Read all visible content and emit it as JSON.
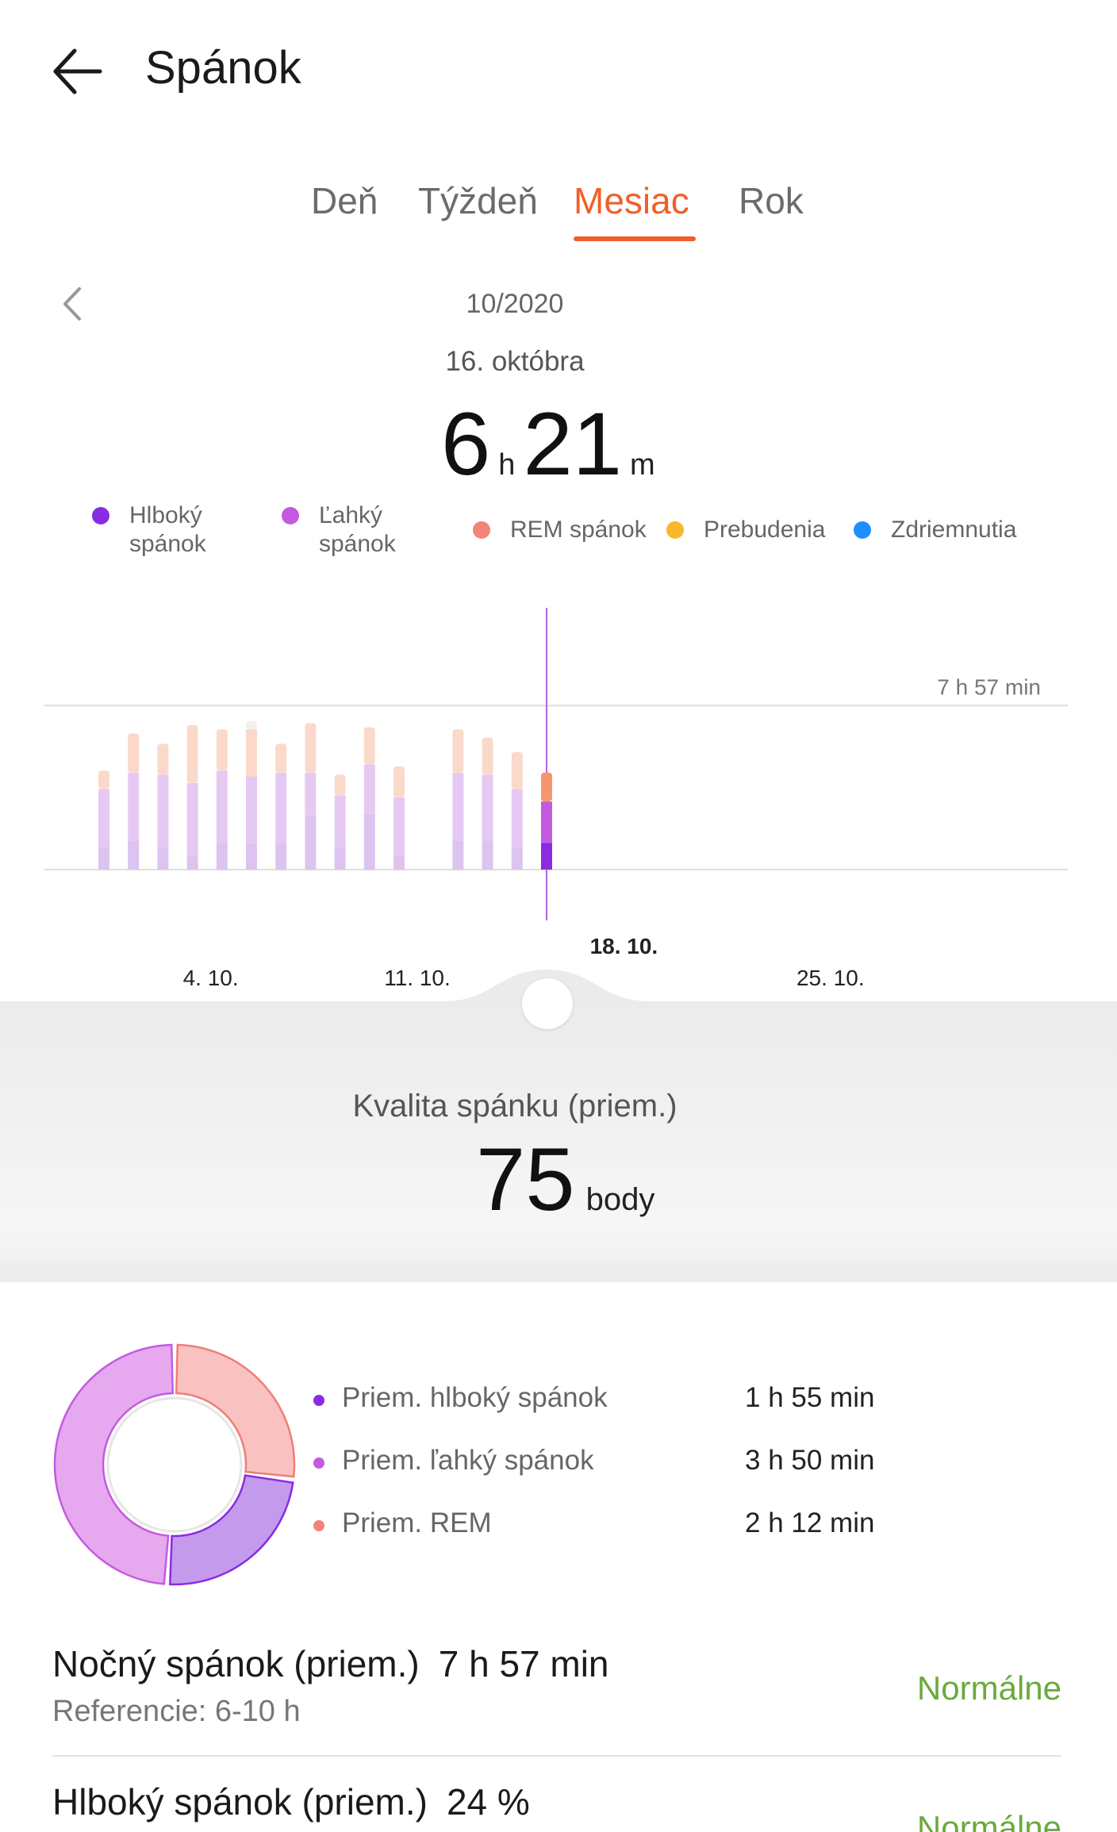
{
  "header": {
    "title": "Spánok",
    "back_icon": "arrow-left-icon"
  },
  "tabs": [
    {
      "label": "Deň",
      "active": false
    },
    {
      "label": "Týždeň",
      "active": false
    },
    {
      "label": "Mesiac",
      "active": true
    },
    {
      "label": "Rok",
      "active": false
    }
  ],
  "period": {
    "month": "10/2020",
    "selected_date": "16. októbra"
  },
  "summary": {
    "hours": "6",
    "hours_unit": "h",
    "minutes": "21",
    "minutes_unit": "m"
  },
  "legend": [
    {
      "label": "Hlboký spánok",
      "color": "#8a2be2"
    },
    {
      "label": "Ľahký spánok",
      "color": "#c45ae0"
    },
    {
      "label": "REM spánok",
      "color": "#f4847a"
    },
    {
      "label": "Prebudenia",
      "color": "#f7b82b"
    },
    {
      "label": "Zdriemnutia",
      "color": "#1e8fff"
    }
  ],
  "chart_data": {
    "type": "bar",
    "stacked": true,
    "x_labels": [
      "4. 10.",
      "11. 10.",
      "18. 10.",
      "25. 10."
    ],
    "highlighted_label": "18. 10.",
    "reference_line_label": "7 h 57 min",
    "reference_line_hours": 7.95,
    "y_max_hours": 10,
    "days": [
      1,
      2,
      3,
      4,
      5,
      6,
      7,
      8,
      9,
      10,
      11,
      12,
      13,
      14,
      15,
      16
    ],
    "series": [
      {
        "name": "Hlboký spánok",
        "color": "#8a2be2",
        "values": [
          1.1,
          1.4,
          1.1,
          0.7,
          1.3,
          1.3,
          1.3,
          2.6,
          1.1,
          2.7,
          0.7,
          null,
          1.4,
          1.4,
          1.1,
          1.3
        ]
      },
      {
        "name": "Ľahký spánok",
        "color": "#c45ae0",
        "values": [
          2.8,
          3.3,
          3.5,
          3.5,
          3.5,
          3.2,
          3.4,
          2.1,
          2.5,
          2.4,
          2.8,
          null,
          3.3,
          3.2,
          2.8,
          2.0
        ]
      },
      {
        "name": "REM spánok",
        "color": "#f4847a",
        "values": [
          0.9,
          1.9,
          1.5,
          2.8,
          2.0,
          2.3,
          1.4,
          2.4,
          1.0,
          1.8,
          1.5,
          null,
          2.1,
          1.8,
          1.8,
          1.4
        ]
      },
      {
        "name": "Prebudenia",
        "color": "#f7b82b",
        "values": [
          0,
          0,
          0,
          0,
          0,
          0.4,
          0,
          0,
          0,
          0,
          0,
          null,
          0,
          0,
          0,
          0
        ]
      }
    ]
  },
  "quality": {
    "label": "Kvalita spánku (priem.)",
    "value": "75",
    "unit": "body"
  },
  "donut": [
    {
      "name": "Priem. REM",
      "fraction": 0.27,
      "color": "#f9c2c0",
      "stroke": "#ef7d78"
    },
    {
      "name": "Priem. hlboký spánok",
      "fraction": 0.24,
      "color": "#c39aec",
      "stroke": "#8a2be2"
    },
    {
      "name": "Priem. ľahký spánok",
      "fraction": 0.49,
      "color": "#e6a8ef",
      "stroke": "#c45ae0"
    }
  ],
  "averages": [
    {
      "label": "Priem. hlboký spánok",
      "value": "1 h 55 min",
      "color": "#8a2be2"
    },
    {
      "label": "Priem. ľahký spánok",
      "value": "3 h 50 min",
      "color": "#c45ae0"
    },
    {
      "label": "Priem. REM",
      "value": "2 h 12 min",
      "color": "#f4847a"
    }
  ],
  "stats": [
    {
      "title": "Nočný spánok (priem.)",
      "value": "7 h 57 min",
      "reference": "Referencie: 6-10 h",
      "status": "Normálne"
    },
    {
      "title": "Hlboký spánok (priem.)",
      "value": "24 %",
      "reference": "",
      "status": "Normálne"
    }
  ]
}
